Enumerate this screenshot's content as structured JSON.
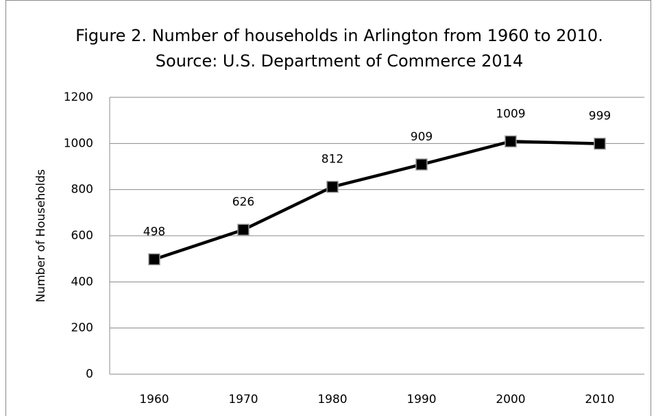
{
  "chart_data": {
    "type": "line",
    "title": "Figure 2. Number of households in Arlington from 1960 to 2010. Source: U.S. Department of Commerce 2014",
    "y_label": "Number of Households",
    "categories": [
      "1960",
      "1970",
      "1980",
      "1990",
      "2000",
      "2010"
    ],
    "values": [
      498,
      626,
      812,
      909,
      1009,
      999
    ],
    "color": "#000000",
    "ylim": [
      0,
      1200
    ],
    "yticks": [
      0,
      200,
      400,
      600,
      800,
      1000,
      1200
    ],
    "grid": true
  }
}
